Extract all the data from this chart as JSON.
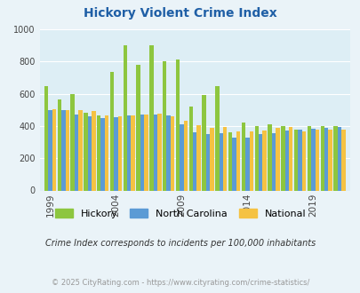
{
  "title": "Hickory Violent Crime Index",
  "subtitle": "Crime Index corresponds to incidents per 100,000 inhabitants",
  "footer": "© 2025 CityRating.com - https://www.cityrating.com/crime-statistics/",
  "years": [
    1999,
    2000,
    2001,
    2002,
    2003,
    2004,
    2005,
    2006,
    2007,
    2008,
    2009,
    2010,
    2011,
    2012,
    2013,
    2014,
    2015,
    2016,
    2017,
    2018,
    2019,
    2020,
    2021
  ],
  "hickory": [
    648,
    563,
    597,
    480,
    468,
    735,
    900,
    782,
    900,
    800,
    810,
    520,
    590,
    650,
    360,
    420,
    400,
    410,
    400,
    380,
    400,
    400,
    400
  ],
  "north_carolina": [
    500,
    500,
    470,
    460,
    450,
    455,
    465,
    470,
    470,
    465,
    408,
    360,
    350,
    355,
    330,
    330,
    350,
    355,
    370,
    375,
    385,
    390,
    395
  ],
  "national": [
    505,
    500,
    500,
    495,
    465,
    460,
    465,
    473,
    478,
    458,
    432,
    404,
    388,
    395,
    368,
    366,
    373,
    386,
    394,
    369,
    380,
    380,
    380
  ],
  "hickory_color": "#8dc63f",
  "nc_color": "#5b9bd5",
  "national_color": "#f5c242",
  "bg_color": "#eaf3f8",
  "plot_bg": "#ddeef5",
  "title_color": "#1f5fa6",
  "subtitle_color": "#333333",
  "footer_color": "#999999",
  "ylim": [
    0,
    1000
  ],
  "yticks": [
    0,
    200,
    400,
    600,
    800,
    1000
  ],
  "xtick_years": [
    1999,
    2004,
    2009,
    2014,
    2019
  ]
}
